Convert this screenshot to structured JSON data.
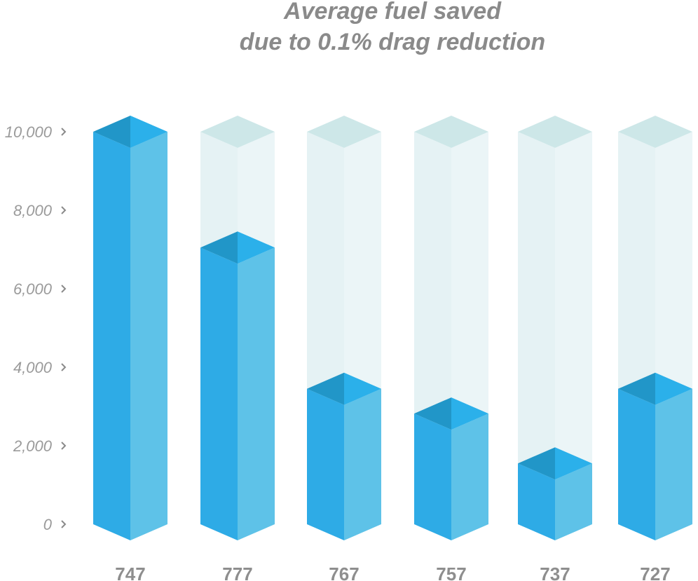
{
  "chart_data": {
    "type": "bar",
    "title_lines": [
      "Average fuel saved",
      "due to 0.1% drag reduction"
    ],
    "categories": [
      "747",
      "777",
      "767",
      "757",
      "737",
      "727"
    ],
    "values": [
      10000,
      7050,
      3450,
      2820,
      1550,
      3450
    ],
    "ylim": [
      0,
      10000
    ],
    "yticks": [
      0,
      2000,
      4000,
      6000,
      8000,
      10000
    ],
    "ytick_labels": [
      "0",
      "2,000",
      "4,000",
      "6,000",
      "8,000",
      "10,000"
    ],
    "xlabel": "",
    "ylabel": "",
    "grid": false,
    "colors": {
      "front": "#2eabe6",
      "side": "#5ec2e8",
      "top_left": "#2196c8",
      "top_right": "#2bb0ea",
      "ghost_front": "#e5f2f4",
      "ghost_side": "#ebf5f7",
      "ghost_top": "#cde7e8"
    }
  }
}
